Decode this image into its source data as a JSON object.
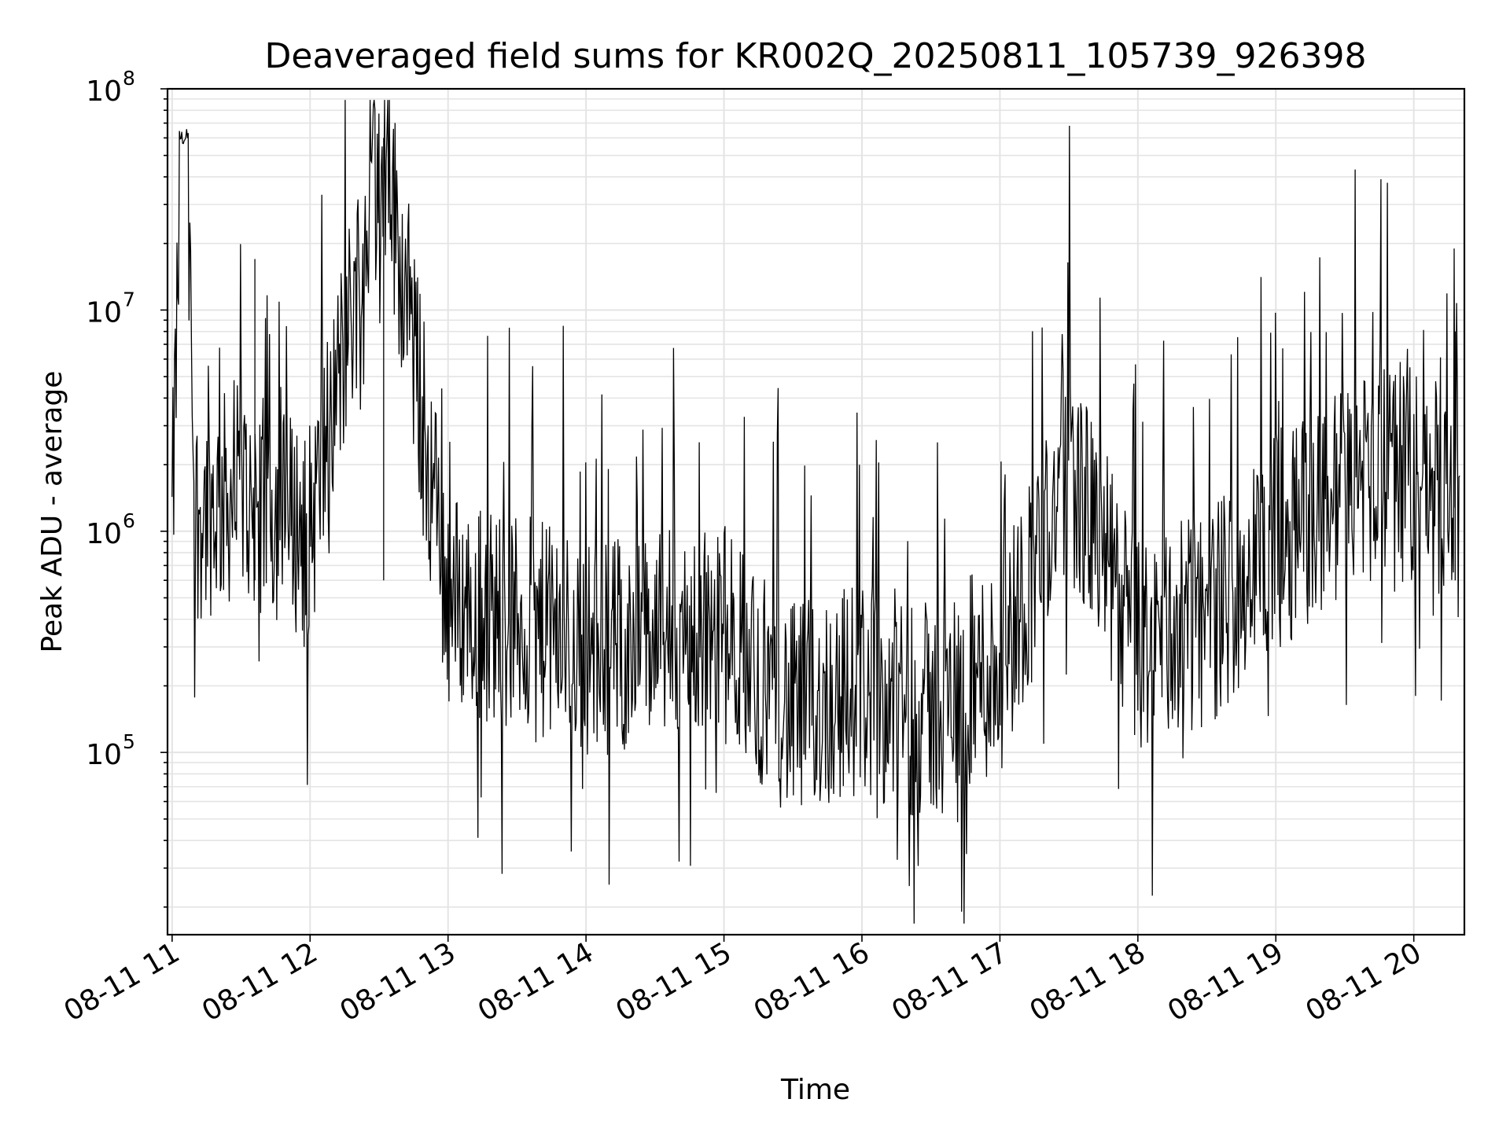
{
  "chart_data": {
    "type": "line",
    "title": "Deaveraged field sums for KR002Q_20250811_105739_926398",
    "xlabel": "Time",
    "ylabel": "Peak ADU - average",
    "yscale": "log",
    "ylim": [
      15000,
      100000000
    ],
    "xlim": [
      "2025-08-11 10:58",
      "2025-08-11 20:22"
    ],
    "grid": true,
    "x_tick_labels": [
      "08-11 11",
      "08-11 12",
      "08-11 13",
      "08-11 14",
      "08-11 15",
      "08-11 16",
      "08-11 17",
      "08-11 18",
      "08-11 19",
      "08-11 20"
    ],
    "y_tick_labels": [
      {
        "base": "10",
        "exp": "5"
      },
      {
        "base": "10",
        "exp": "6"
      },
      {
        "base": "10",
        "exp": "7"
      },
      {
        "base": "10",
        "exp": "8"
      }
    ],
    "series": [
      {
        "color": "#000000",
        "sample_points": [
          {
            "x": "2025-08-11 11:00",
            "y": 1000000
          },
          {
            "x": "2025-08-11 11:04",
            "y": 60000000
          },
          {
            "x": "2025-08-11 11:06",
            "y": 65000000
          },
          {
            "x": "2025-08-11 11:10",
            "y": 1200000
          },
          {
            "x": "2025-08-11 11:30",
            "y": 1500000
          },
          {
            "x": "2025-08-11 12:00",
            "y": 1000000
          },
          {
            "x": "2025-08-11 12:32",
            "y": 60000000
          },
          {
            "x": "2025-08-11 13:00",
            "y": 500000
          },
          {
            "x": "2025-08-11 14:00",
            "y": 300000
          },
          {
            "x": "2025-08-11 15:00",
            "y": 350000
          },
          {
            "x": "2025-08-11 15:30",
            "y": 150000
          },
          {
            "x": "2025-08-11 16:00",
            "y": 200000
          },
          {
            "x": "2025-08-11 16:30",
            "y": 150000
          },
          {
            "x": "2025-08-11 17:00",
            "y": 250000
          },
          {
            "x": "2025-08-11 17:30",
            "y": 2000000
          },
          {
            "x": "2025-08-11 18:00",
            "y": 300000
          },
          {
            "x": "2025-08-11 18:30",
            "y": 400000
          },
          {
            "x": "2025-08-11 19:00",
            "y": 900000
          },
          {
            "x": "2025-08-11 19:45",
            "y": 2000000
          },
          {
            "x": "2025-08-11 20:20",
            "y": 1500000
          }
        ]
      }
    ]
  }
}
